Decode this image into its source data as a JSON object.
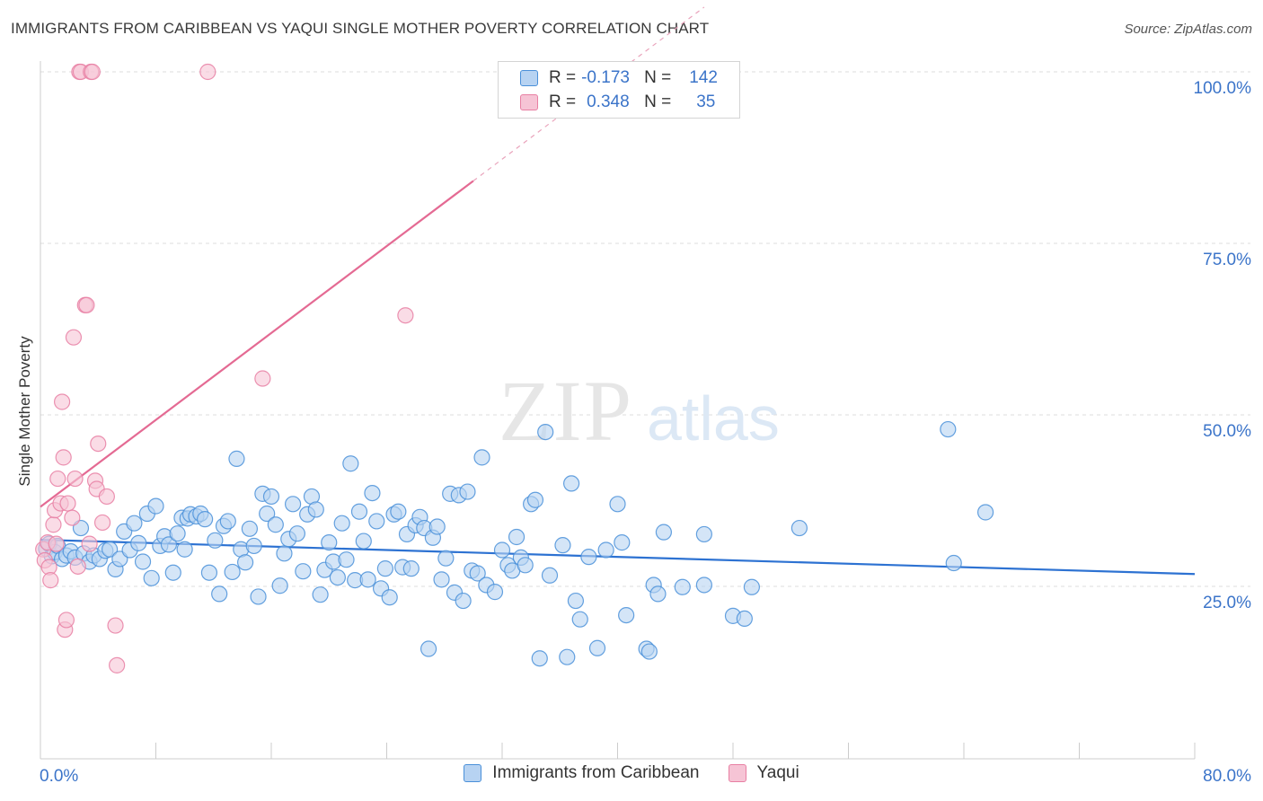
{
  "title": "IMMIGRANTS FROM CARIBBEAN VS YAQUI SINGLE MOTHER POVERTY CORRELATION CHART",
  "source": "Source: ZipAtlas.com",
  "watermark": {
    "zip": "ZIP",
    "atlas": "atlas"
  },
  "legend": {
    "r_label": "R =",
    "n_label": "N =",
    "rows": [
      {
        "r": "-0.173",
        "n": "142",
        "color": "#4a90d9",
        "fill": "#b7d3f2"
      },
      {
        "r": "0.348",
        "n": "35",
        "color": "#e87fa3",
        "fill": "#f6c4d5"
      }
    ]
  },
  "chart_data": {
    "type": "scatter",
    "xlabel": "",
    "ylabel": "Single Mother Poverty",
    "xlim": [
      0,
      80
    ],
    "ylim": [
      5,
      103
    ],
    "x_tick_labels": [
      {
        "value": 0,
        "label": "0.0%"
      },
      {
        "value": 80,
        "label": "80.0%"
      }
    ],
    "y_tick_labels": [
      {
        "value": 25,
        "label": "25.0%"
      },
      {
        "value": 50,
        "label": "50.0%"
      },
      {
        "value": 75,
        "label": "75.0%"
      },
      {
        "value": 100,
        "label": "100.0%"
      }
    ],
    "grid": "horizontal dashed",
    "legend_position": "top-center",
    "series": [
      {
        "name": "Immigrants from Caribbean",
        "color": "#4a90d9",
        "fill": "#b7d3f2",
        "trend": {
          "x": [
            0,
            80
          ],
          "y": [
            31.8,
            26.8
          ],
          "dashed_from": null
        },
        "points": [
          [
            0.4,
            30.5
          ],
          [
            0.6,
            31.2
          ],
          [
            0.8,
            29.4
          ],
          [
            1.0,
            30.0
          ],
          [
            1.2,
            30.9
          ],
          [
            1.5,
            29.0
          ],
          [
            1.8,
            29.5
          ],
          [
            2.1,
            30.1
          ],
          [
            2.4,
            29.2
          ],
          [
            2.8,
            33.5
          ],
          [
            3.0,
            29.8
          ],
          [
            3.4,
            28.6
          ],
          [
            3.7,
            29.5
          ],
          [
            4.1,
            29.0
          ],
          [
            4.5,
            30.2
          ],
          [
            4.8,
            30.4
          ],
          [
            5.2,
            27.5
          ],
          [
            5.5,
            29.0
          ],
          [
            5.8,
            33.0
          ],
          [
            6.2,
            30.3
          ],
          [
            6.5,
            34.2
          ],
          [
            6.8,
            31.3
          ],
          [
            7.1,
            28.6
          ],
          [
            7.4,
            35.6
          ],
          [
            7.7,
            26.2
          ],
          [
            8.0,
            36.7
          ],
          [
            8.3,
            30.9
          ],
          [
            8.6,
            32.3
          ],
          [
            8.9,
            31.1
          ],
          [
            9.2,
            27.0
          ],
          [
            9.5,
            32.7
          ],
          [
            9.8,
            35.0
          ],
          [
            10.0,
            30.4
          ],
          [
            10.2,
            34.9
          ],
          [
            10.4,
            35.5
          ],
          [
            10.8,
            35.2
          ],
          [
            11.1,
            35.6
          ],
          [
            11.4,
            34.8
          ],
          [
            11.7,
            27.0
          ],
          [
            12.1,
            31.7
          ],
          [
            12.4,
            23.9
          ],
          [
            12.7,
            33.8
          ],
          [
            13.0,
            34.5
          ],
          [
            13.3,
            27.1
          ],
          [
            13.6,
            43.6
          ],
          [
            13.9,
            30.4
          ],
          [
            14.2,
            28.5
          ],
          [
            14.5,
            33.4
          ],
          [
            14.8,
            30.9
          ],
          [
            15.1,
            23.5
          ],
          [
            15.4,
            38.5
          ],
          [
            15.7,
            35.6
          ],
          [
            16.0,
            38.1
          ],
          [
            16.3,
            34.0
          ],
          [
            16.6,
            25.1
          ],
          [
            16.9,
            29.8
          ],
          [
            17.2,
            31.9
          ],
          [
            17.5,
            37.0
          ],
          [
            17.8,
            32.7
          ],
          [
            18.2,
            27.2
          ],
          [
            18.5,
            35.5
          ],
          [
            18.8,
            38.1
          ],
          [
            19.1,
            36.2
          ],
          [
            19.4,
            23.8
          ],
          [
            19.7,
            27.4
          ],
          [
            20.0,
            31.4
          ],
          [
            20.3,
            28.6
          ],
          [
            20.6,
            26.3
          ],
          [
            20.9,
            34.2
          ],
          [
            21.2,
            28.9
          ],
          [
            21.5,
            42.9
          ],
          [
            21.8,
            25.9
          ],
          [
            22.1,
            35.9
          ],
          [
            22.4,
            31.6
          ],
          [
            22.7,
            26.0
          ],
          [
            23.0,
            38.6
          ],
          [
            23.3,
            34.5
          ],
          [
            23.6,
            24.7
          ],
          [
            23.9,
            27.6
          ],
          [
            24.2,
            23.4
          ],
          [
            24.5,
            35.5
          ],
          [
            24.8,
            35.9
          ],
          [
            25.1,
            27.8
          ],
          [
            25.4,
            32.6
          ],
          [
            25.7,
            27.6
          ],
          [
            26.0,
            33.9
          ],
          [
            26.3,
            35.1
          ],
          [
            26.6,
            33.5
          ],
          [
            26.9,
            15.9
          ],
          [
            27.2,
            32.1
          ],
          [
            27.5,
            33.7
          ],
          [
            27.8,
            26.0
          ],
          [
            28.1,
            29.1
          ],
          [
            28.4,
            38.5
          ],
          [
            28.7,
            24.1
          ],
          [
            29.0,
            38.3
          ],
          [
            29.3,
            22.9
          ],
          [
            29.6,
            38.8
          ],
          [
            29.9,
            27.3
          ],
          [
            30.3,
            26.9
          ],
          [
            30.6,
            43.8
          ],
          [
            30.9,
            25.2
          ],
          [
            31.5,
            24.2
          ],
          [
            32.0,
            30.3
          ],
          [
            32.4,
            28.1
          ],
          [
            32.7,
            27.3
          ],
          [
            33.0,
            32.2
          ],
          [
            33.3,
            29.2
          ],
          [
            33.6,
            28.1
          ],
          [
            34.0,
            37.0
          ],
          [
            34.3,
            37.6
          ],
          [
            34.6,
            14.5
          ],
          [
            35.0,
            47.5
          ],
          [
            35.3,
            26.6
          ],
          [
            36.2,
            31.0
          ],
          [
            36.5,
            14.7
          ],
          [
            36.8,
            40.0
          ],
          [
            37.1,
            22.9
          ],
          [
            37.4,
            20.2
          ],
          [
            38.0,
            29.3
          ],
          [
            38.6,
            16.0
          ],
          [
            39.2,
            30.3
          ],
          [
            40.0,
            37.0
          ],
          [
            40.3,
            31.4
          ],
          [
            40.6,
            20.8
          ],
          [
            42.0,
            15.9
          ],
          [
            42.2,
            15.5
          ],
          [
            42.5,
            25.2
          ],
          [
            42.8,
            23.9
          ],
          [
            43.2,
            32.9
          ],
          [
            44.5,
            24.9
          ],
          [
            46.0,
            25.2
          ],
          [
            46.0,
            32.6
          ],
          [
            48.0,
            20.7
          ],
          [
            48.8,
            20.3
          ],
          [
            49.3,
            24.9
          ],
          [
            52.6,
            33.5
          ],
          [
            62.9,
            47.9
          ],
          [
            63.3,
            28.4
          ],
          [
            65.5,
            35.8
          ]
        ]
      },
      {
        "name": "Yaqui",
        "color": "#e87fa3",
        "fill": "#f6c4d5",
        "trend": {
          "x": [
            0,
            30
          ],
          "y": [
            36.6,
            84.1
          ],
          "dashed_to": 46
        },
        "points": [
          [
            0.2,
            30.4
          ],
          [
            0.3,
            28.8
          ],
          [
            0.5,
            31.4
          ],
          [
            0.6,
            27.8
          ],
          [
            0.7,
            25.9
          ],
          [
            0.9,
            34.0
          ],
          [
            1.0,
            36.1
          ],
          [
            1.1,
            31.2
          ],
          [
            1.2,
            40.7
          ],
          [
            1.4,
            37.1
          ],
          [
            1.5,
            51.9
          ],
          [
            1.6,
            43.8
          ],
          [
            1.7,
            18.7
          ],
          [
            1.8,
            20.1
          ],
          [
            1.9,
            37.1
          ],
          [
            2.2,
            35.0
          ],
          [
            2.3,
            61.3
          ],
          [
            2.4,
            40.7
          ],
          [
            2.6,
            27.9
          ],
          [
            2.7,
            100.0
          ],
          [
            2.8,
            100.0
          ],
          [
            3.1,
            66.0
          ],
          [
            3.2,
            66.0
          ],
          [
            3.4,
            31.2
          ],
          [
            3.5,
            100.0
          ],
          [
            3.6,
            100.0
          ],
          [
            3.8,
            40.4
          ],
          [
            3.9,
            39.2
          ],
          [
            4.0,
            45.8
          ],
          [
            4.3,
            34.3
          ],
          [
            4.6,
            38.1
          ],
          [
            5.2,
            19.3
          ],
          [
            5.3,
            13.5
          ],
          [
            11.6,
            100.0
          ],
          [
            15.4,
            55.3
          ],
          [
            25.3,
            64.5
          ]
        ]
      }
    ]
  }
}
